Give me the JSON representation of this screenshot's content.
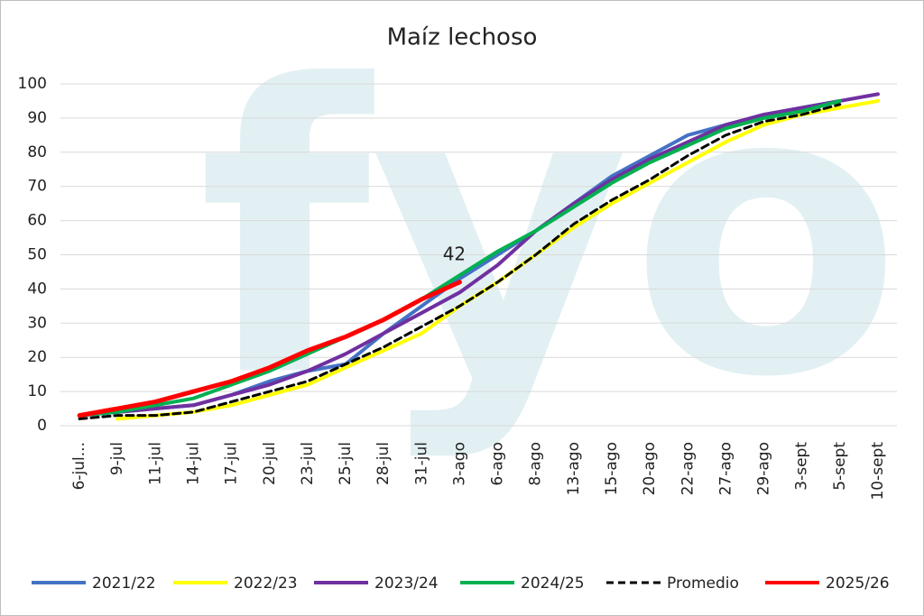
{
  "chart_data": {
    "type": "line",
    "title": "Maíz lechoso",
    "watermark": "fyo",
    "categories": [
      "6-jul...",
      "9-jul",
      "11-jul",
      "14-jul",
      "17-jul",
      "20-jul",
      "23-jul",
      "25-jul",
      "28-jul",
      "31-jul",
      "3-ago",
      "6-ago",
      "8-ago",
      "13-ago",
      "15-ago",
      "20-ago",
      "22-ago",
      "27-ago",
      "29-ago",
      "3-sept",
      "5-sept",
      "10-sept"
    ],
    "series": [
      {
        "name": "2021/22",
        "color": "#4472c4",
        "values": [
          3,
          4,
          5,
          6,
          9,
          13,
          16,
          18,
          27,
          35,
          43,
          50,
          57,
          65,
          73,
          79,
          85,
          88,
          91,
          93,
          95,
          null
        ]
      },
      {
        "name": "2022/23",
        "color": "#ffff00",
        "values": [
          null,
          2,
          3,
          4,
          6,
          9,
          12,
          17,
          22,
          27,
          35,
          42,
          50,
          58,
          65,
          71,
          77,
          83,
          88,
          91,
          93,
          95
        ]
      },
      {
        "name": "2023/24",
        "color": "#7030a0",
        "values": [
          3,
          4,
          5,
          6,
          9,
          12,
          16,
          21,
          27,
          33,
          39,
          47,
          57,
          65,
          72,
          78,
          83,
          88,
          91,
          93,
          95,
          97
        ]
      },
      {
        "name": "2024/25",
        "color": "#00b050",
        "values": [
          3,
          4,
          6,
          8,
          12,
          16,
          21,
          26,
          31,
          37,
          44,
          51,
          57,
          64,
          71,
          77,
          82,
          87,
          90,
          92,
          95,
          null
        ]
      },
      {
        "name": "Promedio",
        "color": "#000000",
        "dashed": true,
        "values": [
          2,
          3,
          3,
          4,
          7,
          10,
          13,
          18,
          23,
          29,
          35,
          42,
          50,
          59,
          66,
          72,
          79,
          85,
          89,
          91,
          94,
          null
        ]
      },
      {
        "name": "2025/26",
        "color": "#ff0000",
        "values": [
          3,
          5,
          7,
          10,
          13,
          17,
          22,
          26,
          31,
          37,
          42,
          null,
          null,
          null,
          null,
          null,
          null,
          null,
          null,
          null,
          null,
          null
        ]
      }
    ],
    "ylim": [
      0,
      100
    ],
    "yticks": [
      0,
      10,
      20,
      30,
      40,
      50,
      60,
      70,
      80,
      90,
      100
    ],
    "grid": true,
    "legend": "bottom"
  }
}
